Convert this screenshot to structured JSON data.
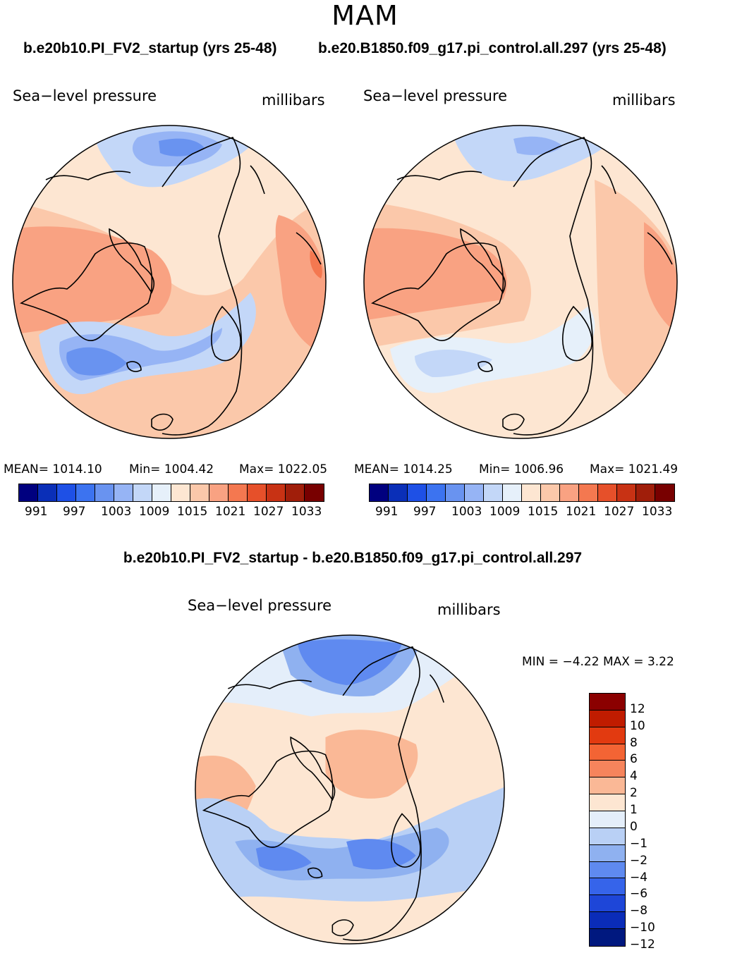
{
  "season": "MAM",
  "case1_title": "b.e20b10.PI_FV2_startup (yrs 25-48)",
  "case2_title": "b.e20.B1850.f09_g17.pi_control.all.297 (yrs 25-48)",
  "diff_title": "b.e20b10.PI_FV2_startup - b.e20.B1850.f09_g17.pi_control.all.297",
  "panels": [
    {
      "var_label": "Sea−level pressure",
      "units": "millibars",
      "mean": "MEAN=  1014.10",
      "min": "Min=  1004.42",
      "max": "Max=  1022.05"
    },
    {
      "var_label": "Sea−level pressure",
      "units": "millibars",
      "mean": "MEAN=  1014.25",
      "min": "Min=  1006.96",
      "max": "Max=  1021.49"
    }
  ],
  "diff_panel": {
    "var_label": "Sea−level pressure",
    "units": "millibars",
    "minmax": "MIN =   −4.22  MAX =     3.22"
  },
  "abs_colorbar": {
    "colors": [
      "#00007f",
      "#0a2fb8",
      "#1e50e6",
      "#3c73f0",
      "#6993f0",
      "#96b4f5",
      "#c3d7f8",
      "#e6f0fa",
      "#fde6d2",
      "#fbc8aa",
      "#f9a282",
      "#f47850",
      "#e6502a",
      "#c83214",
      "#a01e0a",
      "#780000"
    ],
    "tick_labels": [
      "991",
      "997",
      "1003",
      "1009",
      "1015",
      "1021",
      "1027",
      "1033"
    ]
  },
  "diff_colorbar": {
    "colors": [
      "#8b0000",
      "#c01c00",
      "#e23a10",
      "#f36434",
      "#f6845c",
      "#fab896",
      "#fde6d2",
      "#e4eefa",
      "#b9d0f5",
      "#8fb1f0",
      "#5f8af0",
      "#3664ea",
      "#1e46d8",
      "#0a2cb8",
      "#00187f"
    ],
    "tick_labels": [
      "12",
      "10",
      "8",
      "6",
      "4",
      "2",
      "1",
      "0",
      "−1",
      "−2",
      "−4",
      "−6",
      "−8",
      "−10",
      "−12"
    ]
  },
  "colors": {
    "background": "#ffffff",
    "coastline": "#000000"
  }
}
